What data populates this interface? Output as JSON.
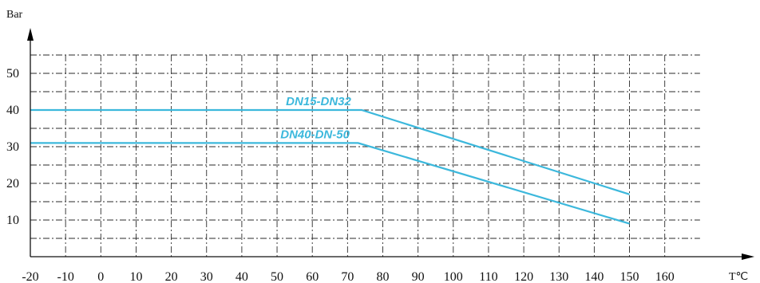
{
  "chart_data": {
    "type": "line",
    "title": "",
    "xlabel": "T℃",
    "ylabel": "Bar",
    "xlim": [
      -20,
      170
    ],
    "ylim": [
      0,
      55
    ],
    "x_ticks": [
      -20,
      -10,
      0,
      10,
      20,
      30,
      40,
      50,
      60,
      70,
      80,
      90,
      100,
      110,
      120,
      130,
      140,
      150,
      160
    ],
    "x_tick_labels": [
      "-20",
      "-10",
      "0",
      "10",
      "20",
      "30",
      "40",
      "50",
      "60",
      "70",
      "80",
      "90",
      "100",
      "110",
      "120",
      "130",
      "140",
      "150",
      "160"
    ],
    "y_ticks": [
      10,
      20,
      30,
      40,
      50
    ],
    "y_tick_labels": [
      "10",
      "20",
      "30",
      "40",
      "50"
    ],
    "grid": true,
    "grid_style": "dash-dot",
    "series_color": "#3cb8dc",
    "series": [
      {
        "name": "DN15-DN32",
        "x": [
          -20,
          74,
          150
        ],
        "y": [
          40,
          40,
          17
        ]
      },
      {
        "name": "DN40-DN-50",
        "x": [
          -20,
          73,
          150
        ],
        "y": [
          31,
          31,
          9
        ]
      }
    ]
  }
}
